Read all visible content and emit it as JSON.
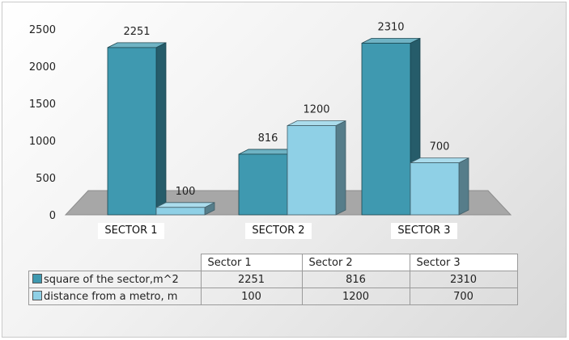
{
  "chart_data": {
    "type": "bar",
    "style": "3d-clustered-column",
    "categories": [
      "SECTOR 1",
      "SECTOR 2",
      "SECTOR 3"
    ],
    "ylim": [
      0,
      2500
    ],
    "yticks": [
      0,
      500,
      1000,
      1500,
      2000,
      2500
    ],
    "series": [
      {
        "name": "square of the sector,m^2",
        "values": [
          2251,
          816,
          2310
        ],
        "color": "#3f99b0"
      },
      {
        "name": "distance from a metro, m",
        "values": [
          100,
          1200,
          700
        ],
        "color": "#8fd0e6"
      }
    ],
    "data_table": {
      "headers": [
        "Sector 1",
        "Sector 2",
        "Sector 3"
      ]
    }
  }
}
